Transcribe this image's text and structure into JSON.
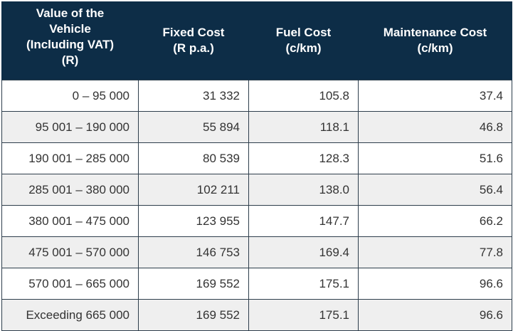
{
  "table": {
    "headers": [
      [
        "Value of the",
        "Vehicle",
        "(Including VAT)",
        "(R)"
      ],
      [
        "Fixed Cost",
        "(R p.a.)"
      ],
      [
        "Fuel Cost",
        "(c/km)"
      ],
      [
        "Maintenance Cost",
        "(c/km)"
      ]
    ],
    "rows": [
      [
        "0 –  95 000",
        "31 332",
        "105.8",
        "37.4"
      ],
      [
        "95 001 – 190 000",
        "55 894",
        "118.1",
        "46.8"
      ],
      [
        "190 001 – 285 000",
        "80 539",
        "128.3",
        "51.6"
      ],
      [
        "285 001 – 380 000",
        "102 211",
        "138.0",
        "56.4"
      ],
      [
        "380 001 – 475 000",
        "123 955",
        "147.7",
        "66.2"
      ],
      [
        "475 001 – 570 000",
        "146 753",
        "169.4",
        "77.8"
      ],
      [
        "570 001 – 665 000",
        "169 552",
        "175.1",
        "96.6"
      ],
      [
        "Exceeding 665 000",
        "169 552",
        "175.1",
        "96.6"
      ]
    ]
  },
  "colors": {
    "header_bg": "#0d2d47",
    "header_text": "#ffffff",
    "row_alt_bg": "#efefef",
    "row_bg": "#ffffff",
    "border": "#2e3e4c"
  }
}
